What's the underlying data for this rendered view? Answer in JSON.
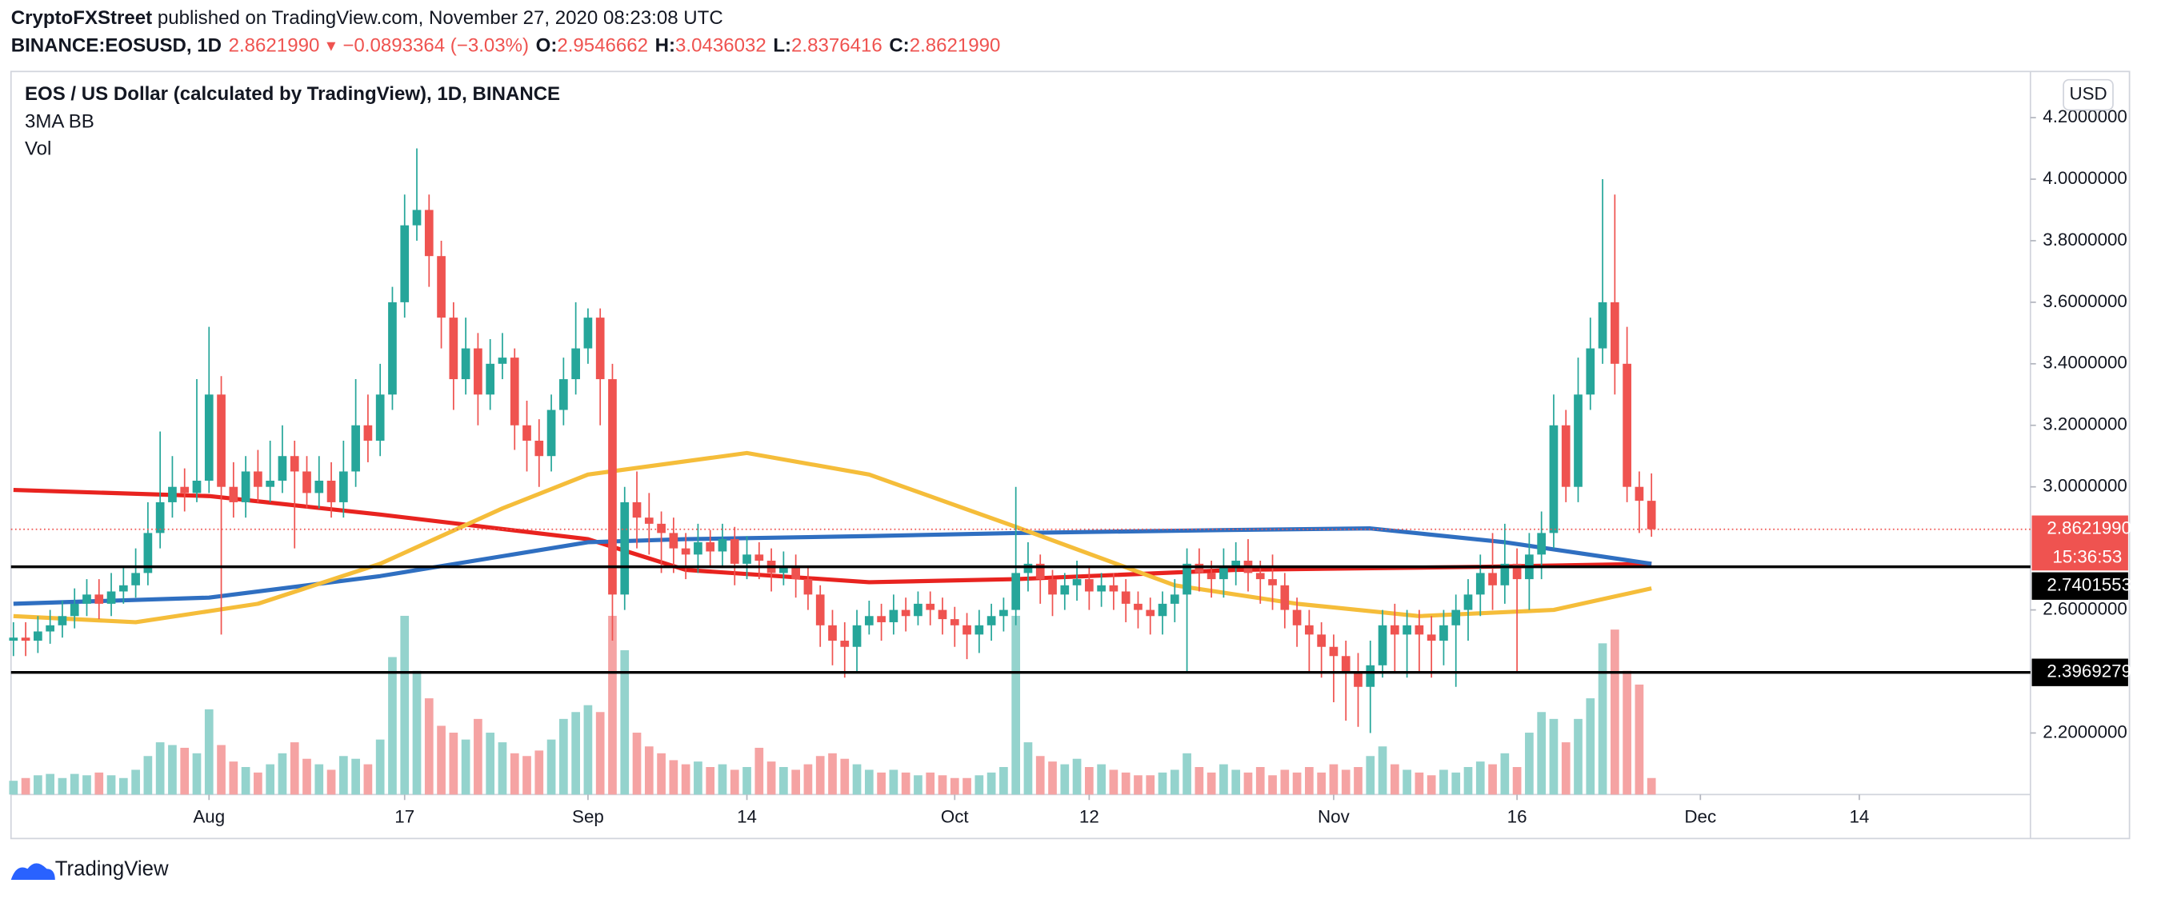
{
  "header": {
    "author": "CryptoFXStreet",
    "published": " published on TradingView.com, November 27, 2020 08:23:08 UTC",
    "symbol": "BINANCE:EOSUSD, 1D",
    "last": "2.8621990",
    "arrow": "▼",
    "change": "−0.0893364 (−3.03%)",
    "o_label": "O:",
    "o": "2.9546662",
    "h_label": "H:",
    "h": "3.0436032",
    "l_label": "L:",
    "l": "2.8376416",
    "c_label": "C:",
    "c": "2.8621990"
  },
  "chart_data": {
    "type": "candlestick",
    "title": "EOS / US Dollar (calculated by TradingView), 1D, BINANCE",
    "indicators": [
      "3MA BB",
      "Vol"
    ],
    "currency": "USD",
    "brand": "TradingView",
    "up_color": "#26a69a",
    "down_color": "#ef5350",
    "volume_up_color": "#94d3cd",
    "volume_down_color": "#f5a3a3",
    "open": [
      2.5,
      2.51,
      2.5,
      2.53,
      2.55,
      2.58,
      2.62,
      2.65,
      2.62,
      2.66,
      2.68,
      2.72,
      2.85,
      2.95,
      3.0,
      2.98,
      3.02,
      3.3,
      3.0,
      2.95,
      3.05,
      3.0,
      3.02,
      3.1,
      3.05,
      2.98,
      3.02,
      2.95,
      3.05,
      3.2,
      3.15,
      3.3,
      3.6,
      3.85,
      3.9,
      3.75,
      3.55,
      3.35,
      3.45,
      3.3,
      3.4,
      3.42,
      3.2,
      3.15,
      3.1,
      3.25,
      3.35,
      3.45,
      3.55,
      3.35,
      2.65,
      2.95,
      2.9,
      2.88,
      2.85,
      2.8,
      2.78,
      2.82,
      2.79,
      2.83,
      2.75,
      2.78,
      2.76,
      2.72,
      2.74,
      2.7,
      2.65,
      2.55,
      2.5,
      2.48,
      2.55,
      2.58,
      2.56,
      2.6,
      2.58,
      2.62,
      2.6,
      2.57,
      2.55,
      2.52,
      2.55,
      2.58,
      2.6,
      2.72,
      2.75,
      2.7,
      2.65,
      2.68,
      2.7,
      2.66,
      2.68,
      2.66,
      2.62,
      2.6,
      2.58,
      2.62,
      2.65,
      2.75,
      2.72,
      2.7,
      2.74,
      2.76,
      2.72,
      2.7,
      2.68,
      2.6,
      2.55,
      2.52,
      2.48,
      2.45,
      2.4,
      2.35,
      2.42,
      2.55,
      2.52,
      2.55,
      2.52,
      2.5,
      2.55,
      2.6,
      2.65,
      2.72,
      2.68,
      2.75,
      2.7,
      2.78,
      2.85,
      3.2,
      3.0,
      3.3,
      3.45,
      3.6,
      3.4,
      3.0,
      2.9546662
    ],
    "high": [
      2.56,
      2.56,
      2.58,
      2.6,
      2.63,
      2.67,
      2.7,
      2.7,
      2.72,
      2.74,
      2.8,
      2.95,
      3.18,
      3.1,
      3.06,
      3.35,
      3.52,
      3.36,
      3.08,
      3.1,
      3.12,
      3.15,
      3.2,
      3.15,
      3.1,
      3.1,
      3.08,
      3.15,
      3.35,
      3.3,
      3.4,
      3.65,
      3.95,
      4.1,
      3.95,
      3.8,
      3.6,
      3.55,
      3.5,
      3.48,
      3.5,
      3.45,
      3.28,
      3.22,
      3.3,
      3.42,
      3.6,
      3.58,
      3.58,
      3.4,
      3.0,
      3.05,
      2.98,
      2.92,
      2.9,
      2.85,
      2.88,
      2.86,
      2.88,
      2.87,
      2.84,
      2.82,
      2.8,
      2.79,
      2.78,
      2.74,
      2.68,
      2.6,
      2.56,
      2.6,
      2.63,
      2.62,
      2.65,
      2.64,
      2.66,
      2.66,
      2.64,
      2.61,
      2.59,
      2.6,
      2.62,
      2.64,
      3.0,
      2.82,
      2.78,
      2.73,
      2.72,
      2.76,
      2.74,
      2.72,
      2.72,
      2.7,
      2.66,
      2.64,
      2.66,
      2.7,
      2.8,
      2.8,
      2.76,
      2.8,
      2.82,
      2.83,
      2.76,
      2.78,
      2.72,
      2.64,
      2.6,
      2.56,
      2.52,
      2.5,
      2.46,
      2.5,
      2.6,
      2.62,
      2.6,
      2.6,
      2.58,
      2.6,
      2.65,
      2.7,
      2.78,
      2.85,
      2.88,
      2.8,
      2.85,
      2.92,
      3.3,
      3.25,
      3.42,
      3.55,
      4.0,
      3.95,
      3.52,
      3.05,
      3.0436032
    ],
    "low": [
      2.45,
      2.45,
      2.46,
      2.49,
      2.51,
      2.54,
      2.58,
      2.57,
      2.58,
      2.62,
      2.64,
      2.68,
      2.8,
      2.9,
      2.92,
      2.95,
      2.98,
      2.52,
      2.9,
      2.9,
      2.95,
      2.95,
      2.98,
      2.8,
      2.93,
      2.93,
      2.9,
      2.9,
      3.0,
      3.08,
      3.1,
      3.25,
      3.55,
      3.8,
      3.65,
      3.45,
      3.25,
      3.3,
      3.2,
      3.25,
      3.35,
      3.12,
      3.05,
      3.0,
      3.05,
      3.2,
      3.3,
      3.4,
      3.2,
      2.5,
      2.6,
      2.8,
      2.78,
      2.72,
      2.72,
      2.7,
      2.72,
      2.74,
      2.74,
      2.68,
      2.7,
      2.7,
      2.66,
      2.68,
      2.64,
      2.6,
      2.48,
      2.42,
      2.38,
      2.4,
      2.52,
      2.5,
      2.52,
      2.53,
      2.55,
      2.55,
      2.52,
      2.48,
      2.44,
      2.46,
      2.5,
      2.53,
      2.55,
      2.66,
      2.62,
      2.58,
      2.6,
      2.63,
      2.6,
      2.61,
      2.6,
      2.56,
      2.54,
      2.52,
      2.52,
      2.56,
      2.4,
      2.66,
      2.64,
      2.64,
      2.68,
      2.66,
      2.62,
      2.6,
      2.54,
      2.48,
      2.4,
      2.38,
      2.3,
      2.24,
      2.22,
      2.2,
      2.38,
      2.4,
      2.38,
      2.4,
      2.38,
      2.42,
      2.35,
      2.5,
      2.58,
      2.6,
      2.62,
      2.4,
      2.6,
      2.7,
      2.8,
      2.95,
      2.95,
      3.25,
      3.4,
      3.3,
      2.95,
      2.85,
      2.8376416
    ],
    "close": [
      2.51,
      2.5,
      2.53,
      2.55,
      2.58,
      2.62,
      2.65,
      2.62,
      2.66,
      2.68,
      2.72,
      2.85,
      2.95,
      3.0,
      2.98,
      3.02,
      3.3,
      3.0,
      2.95,
      3.05,
      3.0,
      3.02,
      3.1,
      3.05,
      2.98,
      3.02,
      2.95,
      3.05,
      3.2,
      3.15,
      3.3,
      3.6,
      3.85,
      3.9,
      3.75,
      3.55,
      3.35,
      3.45,
      3.3,
      3.4,
      3.42,
      3.2,
      3.15,
      3.1,
      3.25,
      3.35,
      3.45,
      3.55,
      3.35,
      2.65,
      2.95,
      2.9,
      2.88,
      2.85,
      2.8,
      2.78,
      2.82,
      2.79,
      2.83,
      2.75,
      2.78,
      2.76,
      2.72,
      2.74,
      2.7,
      2.65,
      2.55,
      2.5,
      2.48,
      2.55,
      2.58,
      2.56,
      2.6,
      2.58,
      2.62,
      2.6,
      2.57,
      2.55,
      2.52,
      2.55,
      2.58,
      2.6,
      2.72,
      2.75,
      2.7,
      2.65,
      2.68,
      2.7,
      2.66,
      2.68,
      2.66,
      2.62,
      2.6,
      2.58,
      2.62,
      2.65,
      2.75,
      2.72,
      2.7,
      2.74,
      2.76,
      2.72,
      2.7,
      2.68,
      2.6,
      2.55,
      2.52,
      2.48,
      2.45,
      2.4,
      2.35,
      2.42,
      2.55,
      2.52,
      2.55,
      2.52,
      2.5,
      2.55,
      2.6,
      2.65,
      2.72,
      2.68,
      2.75,
      2.7,
      2.78,
      2.85,
      3.2,
      3.0,
      3.3,
      3.45,
      3.6,
      3.4,
      3.0,
      2.9546662,
      2.862199
    ],
    "volume": [
      10,
      12,
      14,
      15,
      12,
      15,
      14,
      16,
      14,
      12,
      18,
      28,
      38,
      36,
      34,
      30,
      62,
      36,
      24,
      20,
      16,
      22,
      30,
      38,
      26,
      22,
      18,
      28,
      26,
      22,
      40,
      100,
      130,
      90,
      70,
      50,
      45,
      40,
      55,
      45,
      38,
      30,
      28,
      32,
      40,
      55,
      60,
      65,
      60,
      130,
      105,
      45,
      35,
      30,
      25,
      22,
      24,
      20,
      22,
      18,
      20,
      34,
      24,
      20,
      18,
      22,
      28,
      30,
      26,
      22,
      18,
      16,
      18,
      16,
      14,
      16,
      14,
      12,
      12,
      14,
      16,
      20,
      130,
      38,
      28,
      24,
      22,
      26,
      20,
      22,
      18,
      16,
      14,
      14,
      16,
      18,
      30,
      20,
      16,
      22,
      18,
      16,
      20,
      14,
      18,
      16,
      20,
      16,
      22,
      18,
      20,
      28,
      35,
      22,
      18,
      16,
      14,
      18,
      16,
      20,
      24,
      22,
      30,
      20,
      45,
      60,
      55,
      38,
      55,
      70,
      110,
      120,
      90,
      80,
      12
    ],
    "lines": [
      {
        "color": "#e8231f",
        "x": [
          0,
          16,
          30,
          47,
          55,
          70,
          82,
          100,
          120,
          134
        ],
        "values": [
          2.99,
          2.97,
          2.91,
          2.83,
          2.73,
          2.69,
          2.7,
          2.73,
          2.74,
          2.75
        ]
      },
      {
        "color": "#2f6fc1",
        "x": [
          0,
          16,
          30,
          47,
          55,
          70,
          82,
          100,
          111,
          122,
          134
        ],
        "values": [
          2.62,
          2.64,
          2.71,
          2.82,
          2.83,
          2.84,
          2.85,
          2.86,
          2.865,
          2.82,
          2.75
        ]
      },
      {
        "color": "#f5bd3a",
        "x": [
          0,
          10,
          20,
          30,
          40,
          47,
          60,
          70,
          82,
          95,
          105,
          115,
          126,
          134
        ],
        "values": [
          2.58,
          2.56,
          2.62,
          2.75,
          2.93,
          3.04,
          3.11,
          3.04,
          2.87,
          2.68,
          2.62,
          2.58,
          2.6,
          2.67
        ]
      }
    ],
    "hlines": [
      {
        "value": 2.7401553,
        "color": "#000000"
      },
      {
        "value": 2.3969279,
        "color": "#000000"
      }
    ],
    "price_line": {
      "value": 2.862199,
      "label": "2.8621990",
      "countdown": "15:36:53",
      "color": "#ef5350"
    },
    "ylim": [
      2.0,
      4.35
    ],
    "yticks": [
      {
        "value": 2.2,
        "label": "2.2000000"
      },
      {
        "value": 2.6,
        "label": "2.6000000"
      },
      {
        "value": 3.0,
        "label": "3.0000000"
      },
      {
        "value": 3.2,
        "label": "3.2000000"
      },
      {
        "value": 3.4,
        "label": "3.4000000"
      },
      {
        "value": 3.6,
        "label": "3.6000000"
      },
      {
        "value": 3.8,
        "label": "3.8000000"
      },
      {
        "value": 4.0,
        "label": "4.0000000"
      },
      {
        "value": 4.2,
        "label": "4.2000000"
      }
    ],
    "xlim": [
      -0.2,
      165
    ],
    "xticks": [
      {
        "value": 16,
        "label": "Aug"
      },
      {
        "value": 32,
        "label": "17"
      },
      {
        "value": 47,
        "label": "Sep"
      },
      {
        "value": 60,
        "label": "14"
      },
      {
        "value": 77,
        "label": "Oct"
      },
      {
        "value": 88,
        "label": "12"
      },
      {
        "value": 108,
        "label": "Nov"
      },
      {
        "value": 123,
        "label": "16"
      },
      {
        "value": 138,
        "label": "Dec"
      },
      {
        "value": 151,
        "label": "14"
      }
    ]
  }
}
